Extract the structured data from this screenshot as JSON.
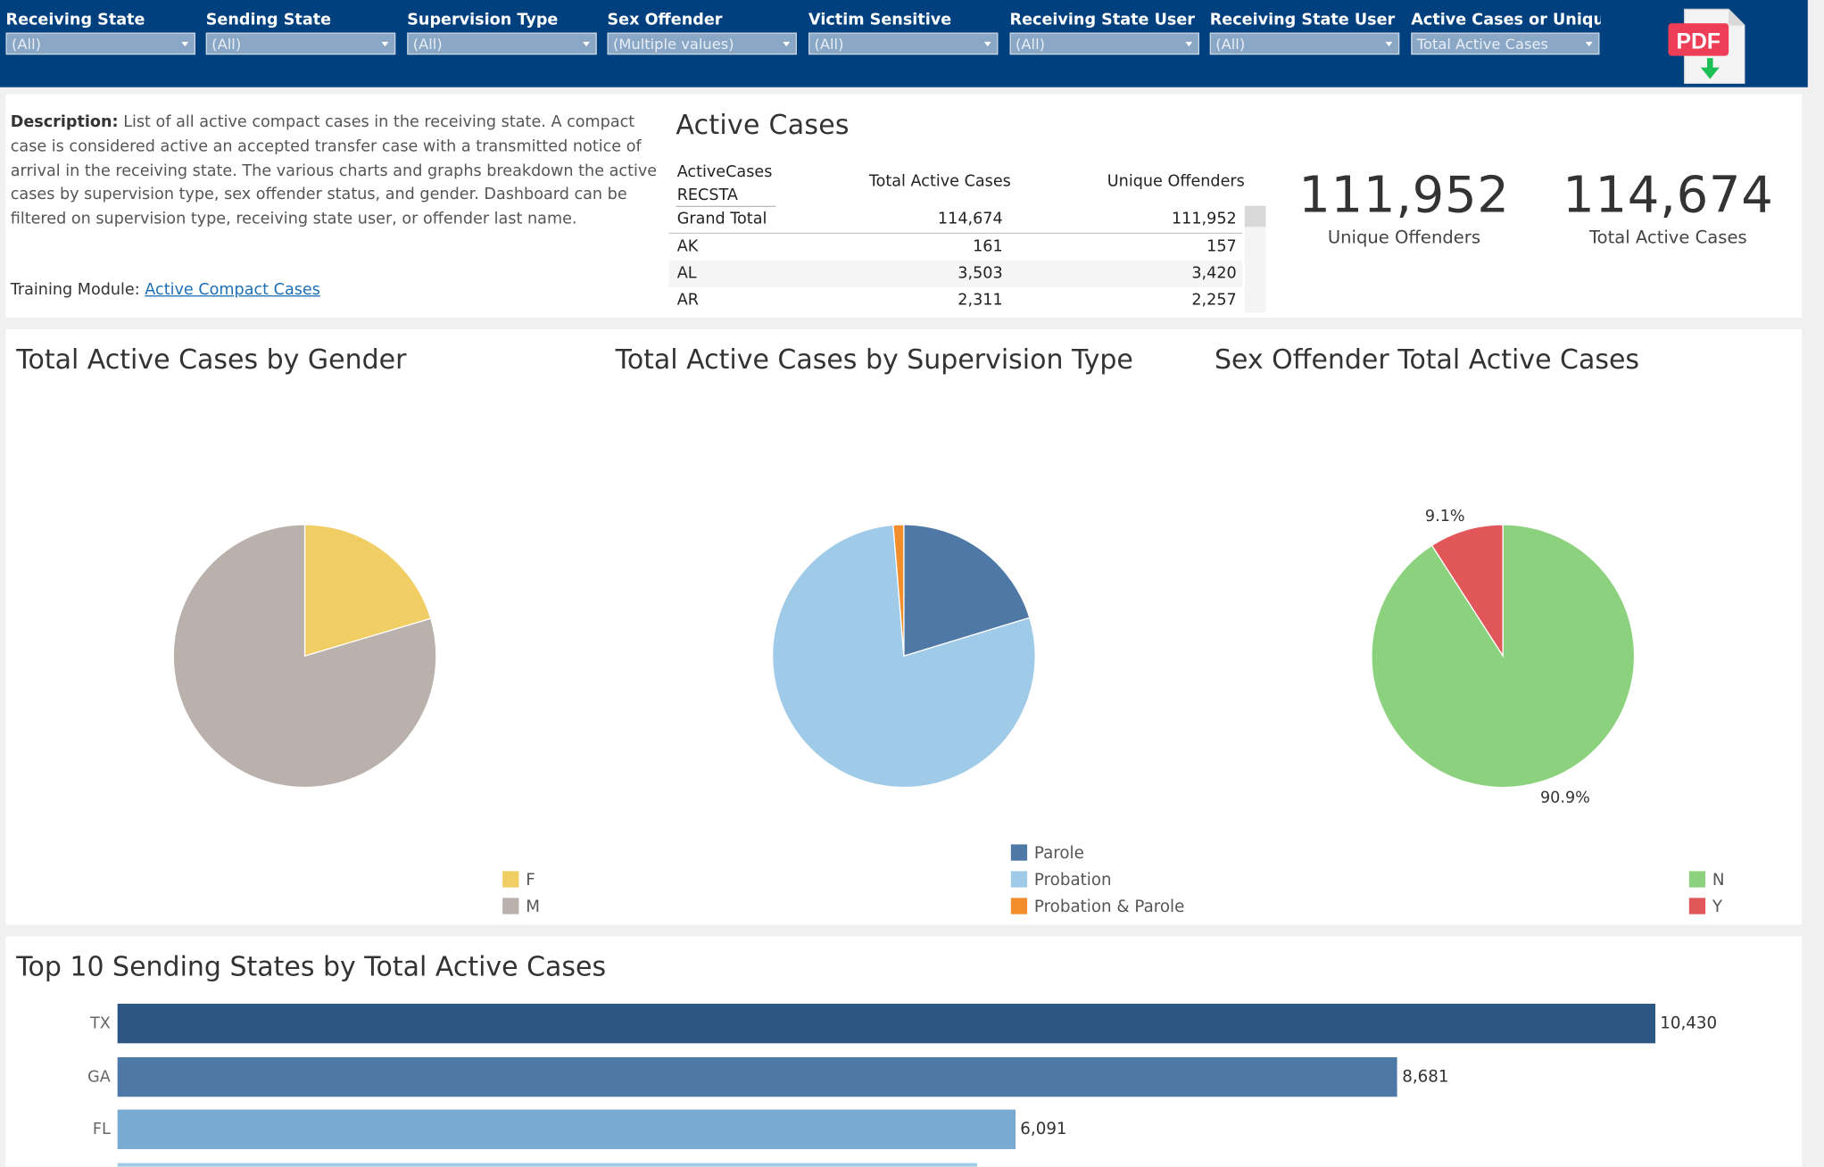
{
  "filters": [
    {
      "label": "Receiving State",
      "value": "(All)"
    },
    {
      "label": "Sending State",
      "value": "(All)"
    },
    {
      "label": "Supervision Type",
      "value": "(All)"
    },
    {
      "label": "Sex Offender",
      "value": "(Multiple values)"
    },
    {
      "label": "Victim Sensitive",
      "value": "(All)"
    },
    {
      "label": "Receiving State User E...",
      "value": "(All)"
    },
    {
      "label": "Receiving State User C...",
      "value": "(All)"
    },
    {
      "label": "Active Cases or Unique",
      "value": "Total Active Cases"
    }
  ],
  "pdf_icon": {
    "label": "PDF",
    "icon": "pdf-download-icon"
  },
  "description": {
    "label": "Description:",
    "text": " List of all active compact cases in the receiving state. A compact case is considered active an accepted transfer case with a transmitted notice of arrival in the receiving state. The various charts and graphs breakdown the active cases by supervision type, sex offender status, and gender. Dashboard can be filtered on supervision type, receiving state user, or offender last name."
  },
  "training": {
    "label": "Training Module: ",
    "link": "Active Compact Cases"
  },
  "active_cases": {
    "title": "Active Cases",
    "row_header_1": "ActiveCases",
    "row_header_2": "RECSTA",
    "col1": "Total Active Cases",
    "col2": "Unique Offenders",
    "rows": [
      {
        "state": "Grand Total",
        "total": "114,674",
        "unique": "111,952"
      },
      {
        "state": "AK",
        "total": "161",
        "unique": "157"
      },
      {
        "state": "AL",
        "total": "3,503",
        "unique": "3,420"
      },
      {
        "state": "AR",
        "total": "2,311",
        "unique": "2,257"
      }
    ]
  },
  "kpis": [
    {
      "value": "111,952",
      "label": "Unique Offenders"
    },
    {
      "value": "114,674",
      "label": "Total Active Cases"
    }
  ],
  "chart_data": [
    {
      "type": "pie",
      "title": "Total Active Cases by Gender",
      "categories": [
        "F",
        "M"
      ],
      "values": [
        20.4,
        79.6
      ],
      "colors": [
        "#f1ce63",
        "#bab0ac"
      ],
      "data_labels": []
    },
    {
      "type": "pie",
      "title": "Total Active Cases by Supervision Type",
      "categories": [
        "Parole",
        "Probation",
        "Probation & Parole"
      ],
      "values": [
        20.3,
        78.4,
        1.3
      ],
      "colors": [
        "#4e79a7",
        "#a0cbe8",
        "#f28e2b"
      ],
      "data_labels": []
    },
    {
      "type": "pie",
      "title": "Sex Offender Total Active Cases",
      "categories": [
        "N",
        "Y"
      ],
      "values": [
        90.9,
        9.1
      ],
      "colors": [
        "#8cd17d",
        "#e15759"
      ],
      "data_labels": [
        "90.9%",
        "9.1%"
      ]
    },
    {
      "type": "bar",
      "title": "Top 10 Sending States by Total Active Cases",
      "categories": [
        "TX",
        "GA",
        "FL",
        ""
      ],
      "values": [
        10430,
        8681,
        6091,
        5830
      ],
      "value_labels": [
        "10,430",
        "8,681",
        "6,091",
        ""
      ],
      "colors": [
        "#2c5684",
        "#4e79a7",
        "#7aaad1",
        "#a0cbe8"
      ],
      "xlim": [
        0,
        10430
      ]
    }
  ]
}
